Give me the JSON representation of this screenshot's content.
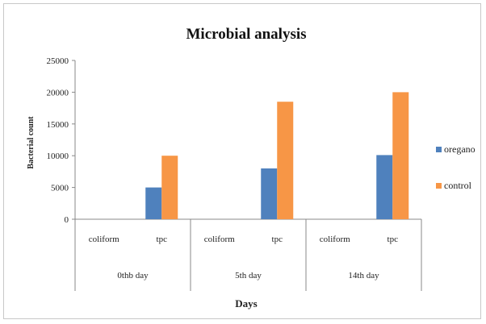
{
  "chart_data": {
    "type": "bar",
    "title": "Microbial analysis",
    "xlabel": "Days",
    "ylabel": "Bacterial count",
    "ylim": [
      0,
      25000
    ],
    "yticks": [
      0,
      5000,
      10000,
      15000,
      20000,
      25000
    ],
    "grid": false,
    "legend_position": "right",
    "groups": [
      {
        "label": "0thb day",
        "categories": [
          "coliform",
          "tpc"
        ]
      },
      {
        "label": "5th day",
        "categories": [
          "coliform",
          "tpc"
        ]
      },
      {
        "label": "14th day",
        "categories": [
          "coliform",
          "tpc"
        ]
      }
    ],
    "series": [
      {
        "name": "oregano",
        "color": "#4f81bd",
        "values": [
          0,
          5000,
          0,
          8000,
          0,
          10100
        ]
      },
      {
        "name": "control",
        "color": "#f79646",
        "values": [
          0,
          10000,
          0,
          18500,
          0,
          20000
        ]
      }
    ]
  }
}
